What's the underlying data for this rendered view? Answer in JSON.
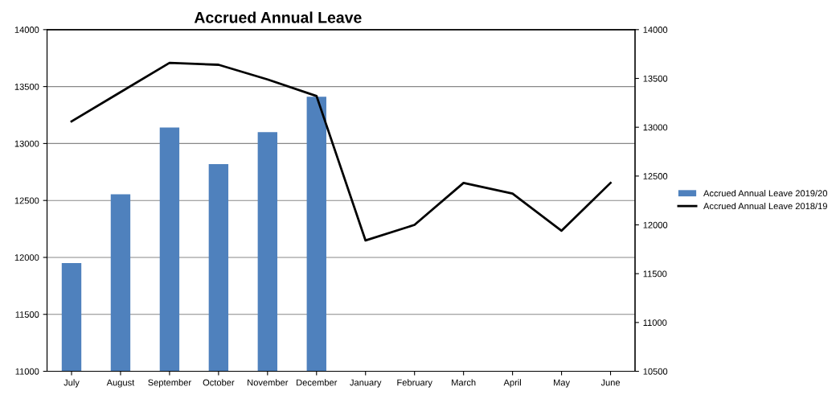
{
  "chart_data": {
    "type": "bar",
    "title": "Accrued Annual Leave",
    "categories": [
      "July",
      "August",
      "September",
      "October",
      "November",
      "December",
      "January",
      "February",
      "March",
      "April",
      "May",
      "June"
    ],
    "series": [
      {
        "name": "Accrued Annual Leave 2019/20",
        "color": "#4f81bd",
        "values": [
          11950,
          12555,
          13140,
          12820,
          13100,
          13410,
          null,
          null,
          null,
          null,
          null,
          null
        ]
      },
      {
        "name": "Accrued Annual Leave 2018/19",
        "color": "#000000",
        "type": "line",
        "axis": "y2",
        "values": [
          13060,
          13360,
          13660,
          13640,
          13490,
          13320,
          11840,
          12000,
          12430,
          12320,
          11940,
          12430
        ]
      }
    ],
    "ylim": [
      11000,
      14000
    ],
    "yticks": [
      11000,
      11500,
      12000,
      12500,
      13000,
      13500,
      14000
    ],
    "y2lim": [
      10500,
      14000
    ],
    "y2ticks": [
      10500,
      11000,
      11500,
      12000,
      12500,
      13000,
      13500,
      14000
    ],
    "grid": "y",
    "legend": "right"
  }
}
